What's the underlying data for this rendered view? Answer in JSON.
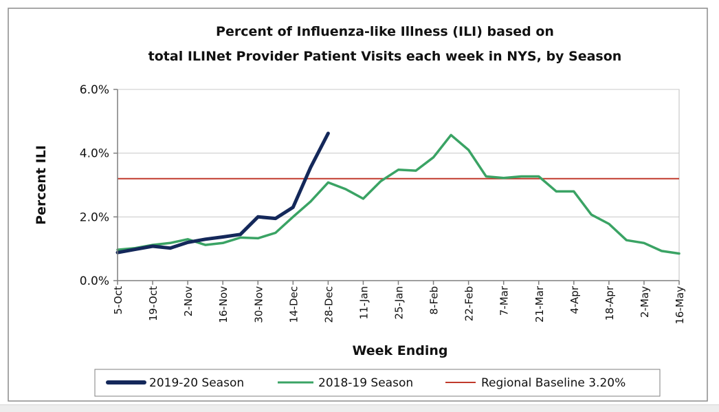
{
  "chart_data": {
    "type": "line",
    "title_lines": [
      "Percent of Influenza-like Illness (ILI) based on",
      "total ILINet Provider Patient Visits each week in NYS, by Season"
    ],
    "xlabel": "Week Ending",
    "ylabel": "Percent ILI",
    "ylim": [
      0,
      6
    ],
    "yticks": [
      0,
      2,
      4,
      6
    ],
    "ytick_labels": [
      "0.0%",
      "2.0%",
      "4.0%",
      "6.0%"
    ],
    "grid": true,
    "legend_position": "bottom",
    "x_tick_labels": [
      "5-Oct",
      "19-Oct",
      "2-Nov",
      "16-Nov",
      "30-Nov",
      "14-Dec",
      "28-Dec",
      "11-Jan",
      "25-Jan",
      "8-Feb",
      "22-Feb",
      "7-Mar",
      "21-Mar",
      "4-Apr",
      "18-Apr",
      "2-May",
      "16-May"
    ],
    "n_weeks": 33,
    "series": [
      {
        "name": "2019-20 Season",
        "color": "#14285a",
        "values": [
          0.88,
          0.98,
          1.08,
          1.02,
          1.2,
          1.3,
          1.37,
          1.45,
          2.0,
          1.95,
          2.3,
          3.55,
          4.62
        ]
      },
      {
        "name": "2018-19 Season",
        "color": "#3aa364",
        "values": [
          0.97,
          1.02,
          1.12,
          1.18,
          1.3,
          1.12,
          1.18,
          1.35,
          1.33,
          1.5,
          2.0,
          2.48,
          3.08,
          2.87,
          2.57,
          3.12,
          3.48,
          3.45,
          3.87,
          4.57,
          4.1,
          3.27,
          3.22,
          3.27,
          3.27,
          2.8,
          2.8,
          2.07,
          1.78,
          1.27,
          1.18,
          0.93,
          0.85
        ]
      },
      {
        "name": "Regional Baseline 3.20%",
        "color": "#c0392b",
        "constant": 3.2
      }
    ]
  }
}
